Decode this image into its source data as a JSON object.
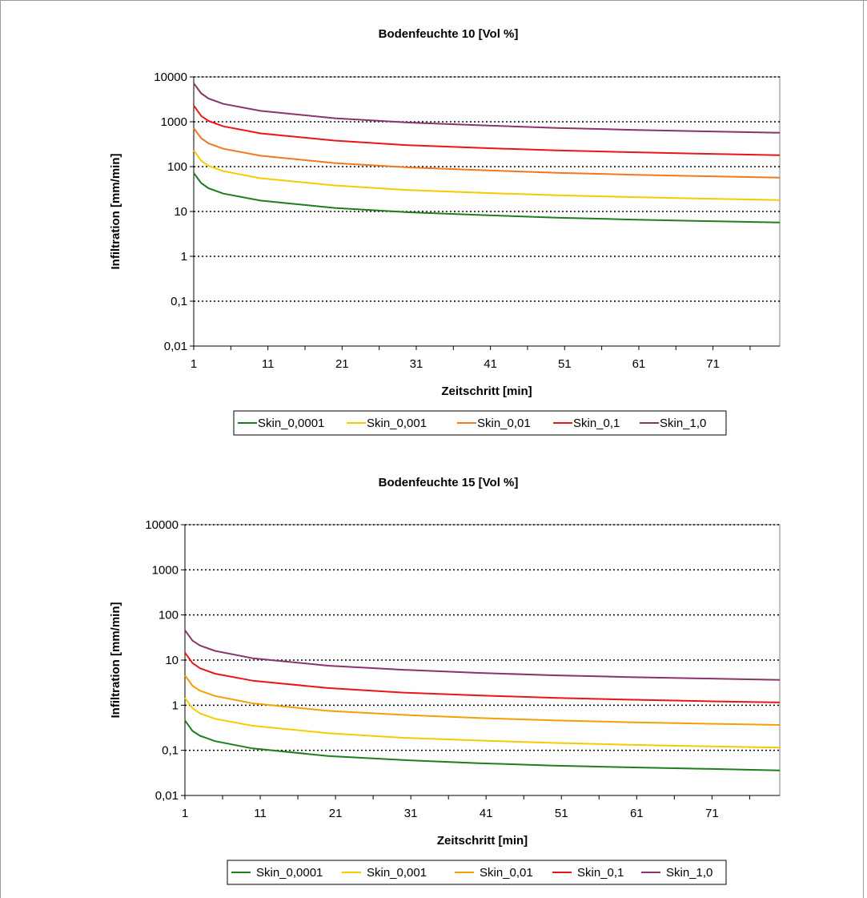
{
  "chart_data": [
    {
      "type": "line",
      "title": "Bodenfeuchte 10 [Vol %]",
      "xlabel": "Zeitschritt [min]",
      "ylabel": "Infiltration [mm/min]",
      "y_scale": "log",
      "ylim": [
        0.01,
        10000
      ],
      "xlim": [
        1,
        80
      ],
      "x_ticks": [
        1,
        11,
        21,
        31,
        41,
        51,
        61,
        71
      ],
      "y_ticks": [
        "0,01",
        "0,1",
        "1",
        "10",
        "100",
        "1000",
        "10000"
      ],
      "grid": "horizontal dotted",
      "legend": "bottom",
      "x": [
        1,
        2,
        3,
        5,
        10,
        20,
        30,
        40,
        50,
        60,
        70,
        80
      ],
      "series": [
        {
          "name": "Skin_0,0001",
          "color": "#1e7d1e",
          "values": [
            72,
            43,
            33,
            25,
            17.5,
            12,
            9.6,
            8.3,
            7.3,
            6.6,
            6.1,
            5.7
          ]
        },
        {
          "name": "Skin_0,001",
          "color": "#f5cc00",
          "values": [
            230,
            135,
            104,
            79,
            55,
            38,
            30,
            26,
            23,
            21,
            19.3,
            18
          ]
        },
        {
          "name": "Skin_0,01",
          "color": "#f07820",
          "values": [
            720,
            430,
            330,
            250,
            175,
            120,
            96,
            83,
            73,
            66,
            61,
            57
          ]
        },
        {
          "name": "Skin_0,1",
          "color": "#e8151b",
          "values": [
            2300,
            1350,
            1040,
            790,
            550,
            380,
            300,
            260,
            230,
            210,
            193,
            180
          ]
        },
        {
          "name": "Skin_1,0",
          "color": "#8a3468",
          "values": [
            7200,
            4300,
            3300,
            2500,
            1750,
            1200,
            960,
            830,
            730,
            660,
            610,
            570
          ]
        }
      ]
    },
    {
      "type": "line",
      "title": "Bodenfeuchte 15 [Vol %]",
      "xlabel": "Zeitschritt [min]",
      "ylabel": "Infiltration  [mm/min]",
      "y_scale": "log",
      "ylim": [
        0.01,
        10000
      ],
      "xlim": [
        1,
        80
      ],
      "x_ticks": [
        1,
        11,
        21,
        31,
        41,
        51,
        61,
        71
      ],
      "y_ticks": [
        "0,01",
        "0,1",
        "1",
        "10",
        "100",
        "1000",
        "10000"
      ],
      "grid": "horizontal dotted",
      "legend": "bottom",
      "x": [
        1,
        2,
        3,
        5,
        10,
        20,
        30,
        40,
        50,
        60,
        70,
        80
      ],
      "series": [
        {
          "name": "Skin_0,0001",
          "color": "#1e7d1e",
          "values": [
            0.46,
            0.27,
            0.21,
            0.16,
            0.11,
            0.075,
            0.061,
            0.052,
            0.046,
            0.042,
            0.039,
            0.036
          ]
        },
        {
          "name": "Skin_0,001",
          "color": "#f5cc00",
          "values": [
            1.46,
            0.86,
            0.66,
            0.5,
            0.35,
            0.24,
            0.19,
            0.165,
            0.146,
            0.133,
            0.123,
            0.115
          ]
        },
        {
          "name": "Skin_0,01",
          "color": "#f5a000",
          "values": [
            4.6,
            2.7,
            2.1,
            1.6,
            1.1,
            0.75,
            0.61,
            0.52,
            0.46,
            0.42,
            0.39,
            0.365
          ]
        },
        {
          "name": "Skin_0,1",
          "color": "#e8151b",
          "values": [
            14.6,
            8.6,
            6.6,
            5.0,
            3.5,
            2.4,
            1.9,
            1.65,
            1.46,
            1.33,
            1.23,
            1.15
          ]
        },
        {
          "name": "Skin_1,0",
          "color": "#8a3468",
          "values": [
            46,
            27,
            21,
            16,
            11,
            7.5,
            6.1,
            5.2,
            4.6,
            4.2,
            3.9,
            3.65
          ]
        }
      ]
    }
  ]
}
